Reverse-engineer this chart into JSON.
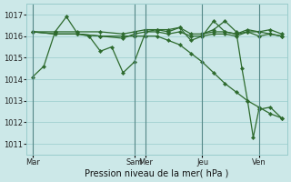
{
  "background_color": "#cce8e8",
  "grid_color": "#99cccc",
  "line_color": "#2d6a2d",
  "marker_color": "#2d6a2d",
  "xlabel": "Pression niveau de la mer( hPa )",
  "ylim": [
    1010.5,
    1017.5
  ],
  "yticks": [
    1011,
    1012,
    1013,
    1014,
    1015,
    1016,
    1017
  ],
  "xtick_labels": [
    "Mar",
    "Sam",
    "Mer",
    "Jeu",
    "Ven"
  ],
  "xtick_positions": [
    0,
    36,
    40,
    60,
    80
  ],
  "total_x": 88,
  "vlines": [
    0,
    36,
    40,
    60,
    80
  ],
  "lines": [
    {
      "x": [
        0,
        8,
        16,
        24,
        32,
        36,
        40,
        44,
        48,
        52,
        56,
        60,
        64,
        68,
        72,
        76,
        80,
        84,
        88
      ],
      "y": [
        1016.2,
        1016.1,
        1016.1,
        1016.0,
        1016.0,
        1016.0,
        1016.0,
        1016.0,
        1015.8,
        1015.6,
        1015.2,
        1014.8,
        1014.3,
        1013.8,
        1013.4,
        1013.0,
        1012.7,
        1012.4,
        1012.2
      ]
    },
    {
      "x": [
        0,
        4,
        8,
        12,
        16,
        20,
        24,
        28,
        32,
        36,
        40,
        44,
        48,
        52,
        56,
        60,
        64,
        68,
        72,
        76,
        80,
        84,
        88
      ],
      "y": [
        1014.1,
        1014.6,
        1016.2,
        1016.9,
        1016.1,
        1016.0,
        1015.3,
        1015.5,
        1014.3,
        1014.8,
        1016.2,
        1016.3,
        1016.2,
        1016.4,
        1015.8,
        1016.0,
        1016.7,
        1016.2,
        1016.1,
        1016.2,
        1016.2,
        1016.3,
        1016.1
      ]
    },
    {
      "x": [
        0,
        8,
        16,
        24,
        32,
        36,
        40,
        44,
        48,
        52,
        56,
        60,
        64,
        68,
        72,
        76,
        80,
        84,
        88
      ],
      "y": [
        1016.2,
        1016.2,
        1016.2,
        1016.2,
        1016.1,
        1016.2,
        1016.3,
        1016.3,
        1016.3,
        1016.4,
        1016.1,
        1016.1,
        1016.2,
        1016.2,
        1016.1,
        1016.3,
        1016.2,
        1016.1,
        1016.0
      ]
    },
    {
      "x": [
        0,
        8,
        16,
        24,
        32,
        36,
        40,
        44,
        48,
        52,
        56,
        60,
        64,
        68,
        72,
        76,
        80,
        84,
        88
      ],
      "y": [
        1016.2,
        1016.1,
        1016.1,
        1016.0,
        1015.9,
        1016.1,
        1016.2,
        1016.2,
        1016.1,
        1016.2,
        1016.0,
        1016.0,
        1016.1,
        1016.1,
        1016.0,
        1016.2,
        1016.0,
        1016.1,
        1016.0
      ]
    },
    {
      "x": [
        60,
        64,
        68,
        72,
        74,
        76,
        78,
        80,
        84,
        88
      ],
      "y": [
        1016.1,
        1016.3,
        1016.7,
        1016.2,
        1014.5,
        1013.0,
        1011.3,
        1012.6,
        1012.7,
        1012.2
      ]
    }
  ],
  "xlim": [
    -2,
    90
  ]
}
